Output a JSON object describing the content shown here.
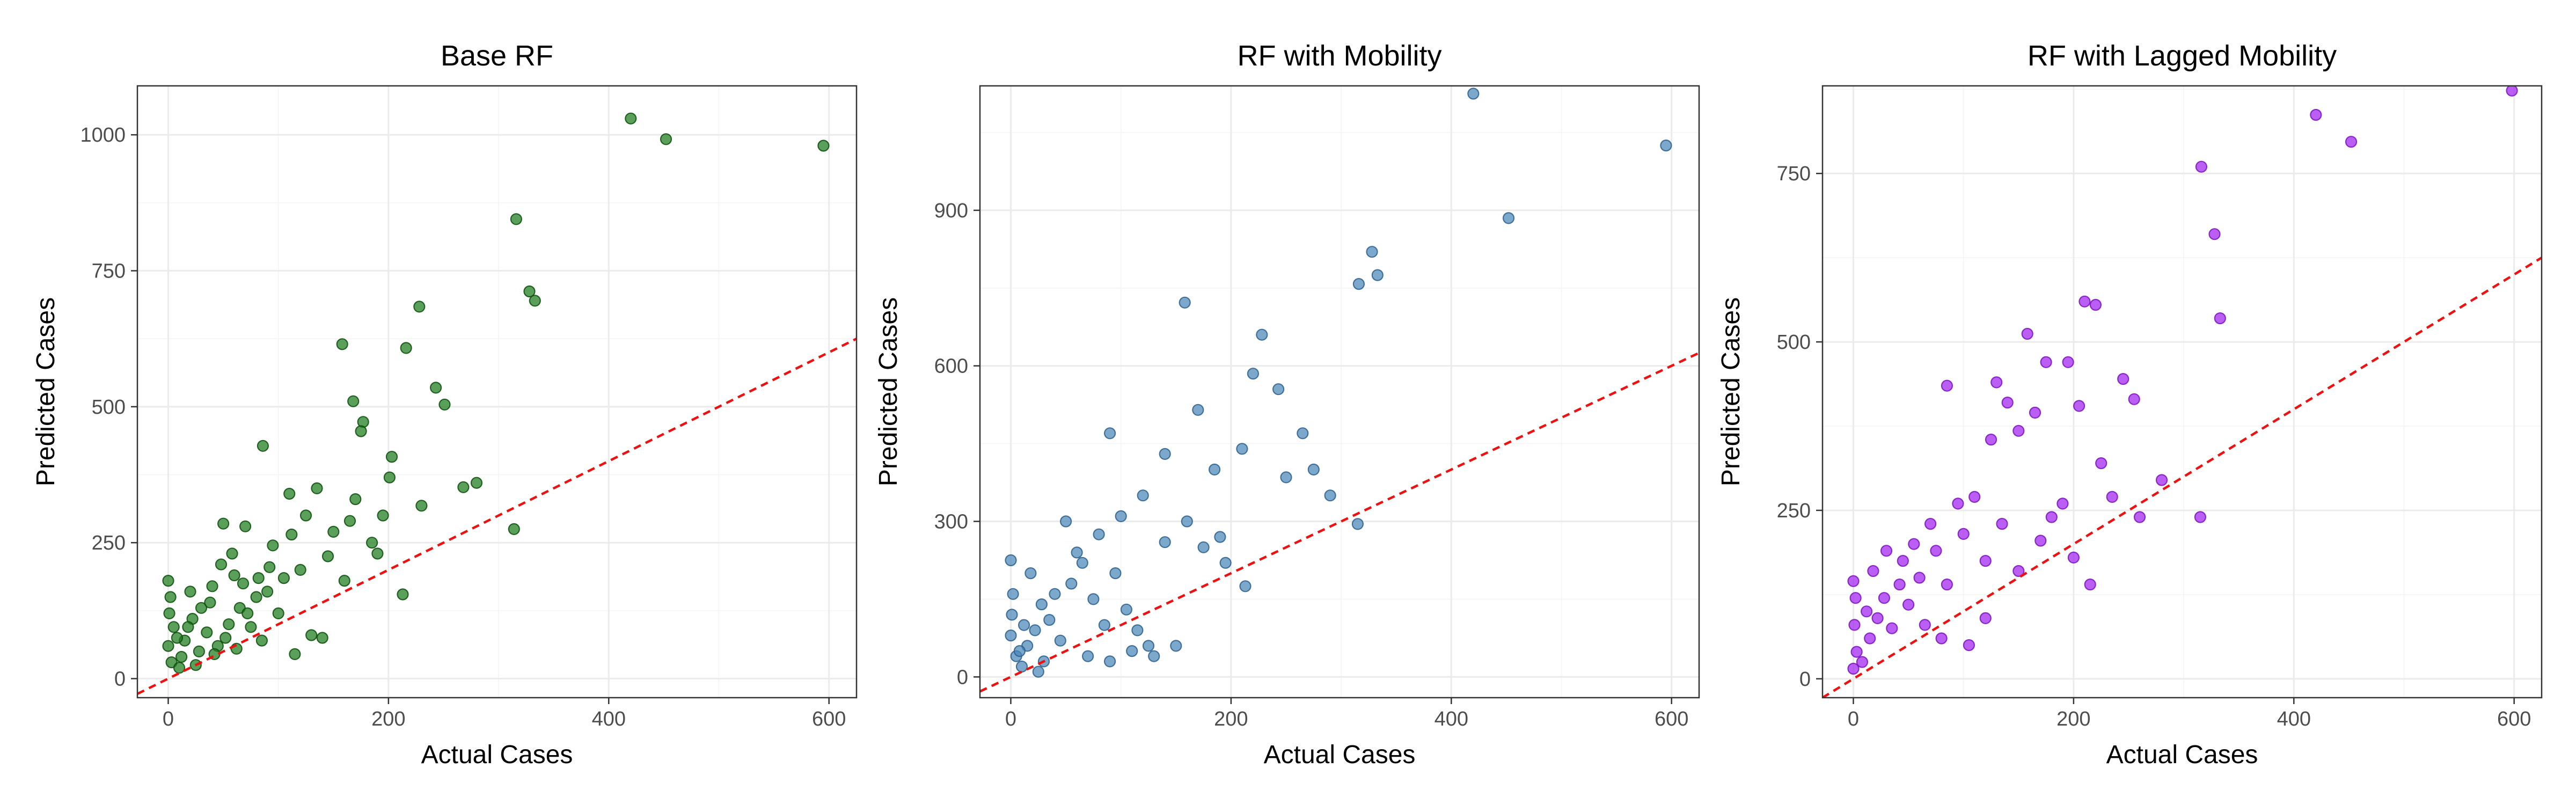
{
  "chart_data": [
    {
      "type": "scatter",
      "title": "Base RF",
      "xlabel": "Actual Cases",
      "ylabel": "Predicted Cases",
      "xlim": [
        -28,
        625
      ],
      "ylim": [
        -35,
        1090
      ],
      "xticks": [
        0,
        200,
        400,
        600
      ],
      "yticks": [
        0,
        250,
        500,
        750,
        1000
      ],
      "grid": true,
      "point_color": "#1a7a1a",
      "point_edge": "#0b4d0b",
      "reference_line": {
        "slope": 1,
        "intercept": 0,
        "color": "#ee1111",
        "style": "dashed"
      },
      "points": [
        [
          420,
          1030
        ],
        [
          452,
          992
        ],
        [
          595,
          980
        ],
        [
          316,
          845
        ],
        [
          328,
          712
        ],
        [
          333,
          695
        ],
        [
          228,
          684
        ],
        [
          158,
          615
        ],
        [
          216,
          608
        ],
        [
          243,
          535
        ],
        [
          251,
          504
        ],
        [
          168,
          510
        ],
        [
          177,
          472
        ],
        [
          86,
          428
        ],
        [
          203,
          408
        ],
        [
          175,
          455
        ],
        [
          201,
          370
        ],
        [
          230,
          318
        ],
        [
          280,
          360
        ],
        [
          268,
          352
        ],
        [
          314,
          275
        ],
        [
          213,
          155
        ],
        [
          165,
          290
        ],
        [
          135,
          350
        ],
        [
          110,
          340
        ],
        [
          70,
          280
        ],
        [
          50,
          285
        ],
        [
          145,
          225
        ],
        [
          160,
          180
        ],
        [
          120,
          200
        ],
        [
          95,
          245
        ],
        [
          190,
          230
        ],
        [
          130,
          80
        ],
        [
          140,
          75
        ],
        [
          115,
          45
        ],
        [
          60,
          190
        ],
        [
          40,
          170
        ],
        [
          80,
          150
        ],
        [
          100,
          120
        ],
        [
          0,
          180
        ],
        [
          2,
          150
        ],
        [
          1,
          120
        ],
        [
          5,
          95
        ],
        [
          0,
          60
        ],
        [
          3,
          30
        ],
        [
          10,
          20
        ],
        [
          15,
          70
        ],
        [
          22,
          110
        ],
        [
          28,
          50
        ],
        [
          35,
          85
        ],
        [
          45,
          60
        ],
        [
          55,
          100
        ],
        [
          65,
          130
        ],
        [
          75,
          95
        ],
        [
          85,
          70
        ],
        [
          90,
          160
        ],
        [
          105,
          185
        ],
        [
          20,
          160
        ],
        [
          30,
          130
        ],
        [
          38,
          140
        ],
        [
          48,
          210
        ],
        [
          58,
          230
        ],
        [
          68,
          175
        ],
        [
          12,
          40
        ],
        [
          18,
          95
        ],
        [
          8,
          75
        ],
        [
          25,
          25
        ],
        [
          42,
          45
        ],
        [
          52,
          75
        ],
        [
          62,
          55
        ],
        [
          72,
          120
        ],
        [
          82,
          185
        ],
        [
          92,
          205
        ],
        [
          112,
          265
        ],
        [
          125,
          300
        ],
        [
          150,
          270
        ],
        [
          170,
          330
        ],
        [
          185,
          250
        ],
        [
          195,
          300
        ]
      ]
    },
    {
      "type": "scatter",
      "title": "RF with Mobility",
      "xlabel": "Actual Cases",
      "ylabel": "Predicted Cases",
      "xlim": [
        -28,
        625
      ],
      "ylim": [
        -40,
        1140
      ],
      "xticks": [
        0,
        200,
        400,
        600
      ],
      "yticks": [
        0,
        300,
        600,
        900
      ],
      "grid": true,
      "point_color": "#4a86b8",
      "point_edge": "#2b5f8c",
      "reference_line": {
        "slope": 1,
        "intercept": 0,
        "color": "#ee1111",
        "style": "dashed"
      },
      "points": [
        [
          420,
          1125
        ],
        [
          595,
          1025
        ],
        [
          452,
          885
        ],
        [
          328,
          820
        ],
        [
          333,
          775
        ],
        [
          316,
          758
        ],
        [
          158,
          722
        ],
        [
          228,
          660
        ],
        [
          220,
          585
        ],
        [
          243,
          555
        ],
        [
          170,
          515
        ],
        [
          90,
          470
        ],
        [
          210,
          440
        ],
        [
          185,
          400
        ],
        [
          265,
          470
        ],
        [
          275,
          400
        ],
        [
          290,
          350
        ],
        [
          250,
          385
        ],
        [
          315,
          295
        ],
        [
          213,
          175
        ],
        [
          195,
          220
        ],
        [
          140,
          430
        ],
        [
          120,
          350
        ],
        [
          100,
          310
        ],
        [
          80,
          275
        ],
        [
          60,
          240
        ],
        [
          50,
          300
        ],
        [
          0,
          225
        ],
        [
          2,
          160
        ],
        [
          1,
          120
        ],
        [
          0,
          80
        ],
        [
          5,
          40
        ],
        [
          10,
          20
        ],
        [
          15,
          60
        ],
        [
          22,
          90
        ],
        [
          28,
          140
        ],
        [
          35,
          110
        ],
        [
          45,
          70
        ],
        [
          55,
          180
        ],
        [
          65,
          220
        ],
        [
          75,
          150
        ],
        [
          85,
          100
        ],
        [
          95,
          200
        ],
        [
          105,
          130
        ],
        [
          115,
          90
        ],
        [
          125,
          60
        ],
        [
          140,
          260
        ],
        [
          160,
          300
        ],
        [
          175,
          250
        ],
        [
          190,
          270
        ],
        [
          30,
          30
        ],
        [
          40,
          160
        ],
        [
          18,
          200
        ],
        [
          12,
          100
        ],
        [
          8,
          50
        ],
        [
          25,
          10
        ],
        [
          70,
          40
        ],
        [
          90,
          30
        ],
        [
          110,
          50
        ],
        [
          130,
          40
        ],
        [
          150,
          60
        ]
      ]
    },
    {
      "type": "scatter",
      "title": "RF with Lagged Mobility",
      "xlabel": "Actual Cases",
      "ylabel": "Predicted Cases",
      "xlim": [
        -28,
        625
      ],
      "ylim": [
        -28,
        880
      ],
      "xticks": [
        0,
        200,
        400,
        600
      ],
      "yticks": [
        0,
        250,
        500,
        750
      ],
      "grid": true,
      "point_color": "#a020f0",
      "point_edge": "#7a12c0",
      "reference_line": {
        "slope": 1,
        "intercept": 0,
        "color": "#ee1111",
        "style": "dashed"
      },
      "points": [
        [
          598,
          873
        ],
        [
          420,
          837
        ],
        [
          452,
          797
        ],
        [
          316,
          760
        ],
        [
          328,
          660
        ],
        [
          333,
          535
        ],
        [
          210,
          560
        ],
        [
          220,
          555
        ],
        [
          158,
          512
        ],
        [
          175,
          470
        ],
        [
          195,
          470
        ],
        [
          255,
          415
        ],
        [
          245,
          445
        ],
        [
          130,
          440
        ],
        [
          85,
          435
        ],
        [
          140,
          410
        ],
        [
          165,
          395
        ],
        [
          205,
          405
        ],
        [
          150,
          368
        ],
        [
          125,
          355
        ],
        [
          280,
          295
        ],
        [
          260,
          240
        ],
        [
          315,
          240
        ],
        [
          200,
          180
        ],
        [
          215,
          140
        ],
        [
          180,
          240
        ],
        [
          110,
          270
        ],
        [
          95,
          260
        ],
        [
          70,
          230
        ],
        [
          55,
          200
        ],
        [
          45,
          175
        ],
        [
          0,
          145
        ],
        [
          2,
          120
        ],
        [
          1,
          80
        ],
        [
          3,
          40
        ],
        [
          0,
          15
        ],
        [
          8,
          25
        ],
        [
          15,
          60
        ],
        [
          22,
          90
        ],
        [
          28,
          120
        ],
        [
          35,
          75
        ],
        [
          42,
          140
        ],
        [
          50,
          110
        ],
        [
          60,
          150
        ],
        [
          75,
          190
        ],
        [
          85,
          140
        ],
        [
          100,
          215
        ],
        [
          120,
          175
        ],
        [
          135,
          230
        ],
        [
          150,
          160
        ],
        [
          170,
          205
        ],
        [
          190,
          260
        ],
        [
          225,
          320
        ],
        [
          235,
          270
        ],
        [
          18,
          160
        ],
        [
          30,
          190
        ],
        [
          65,
          80
        ],
        [
          80,
          60
        ],
        [
          105,
          50
        ],
        [
          120,
          90
        ],
        [
          12,
          100
        ]
      ]
    }
  ]
}
